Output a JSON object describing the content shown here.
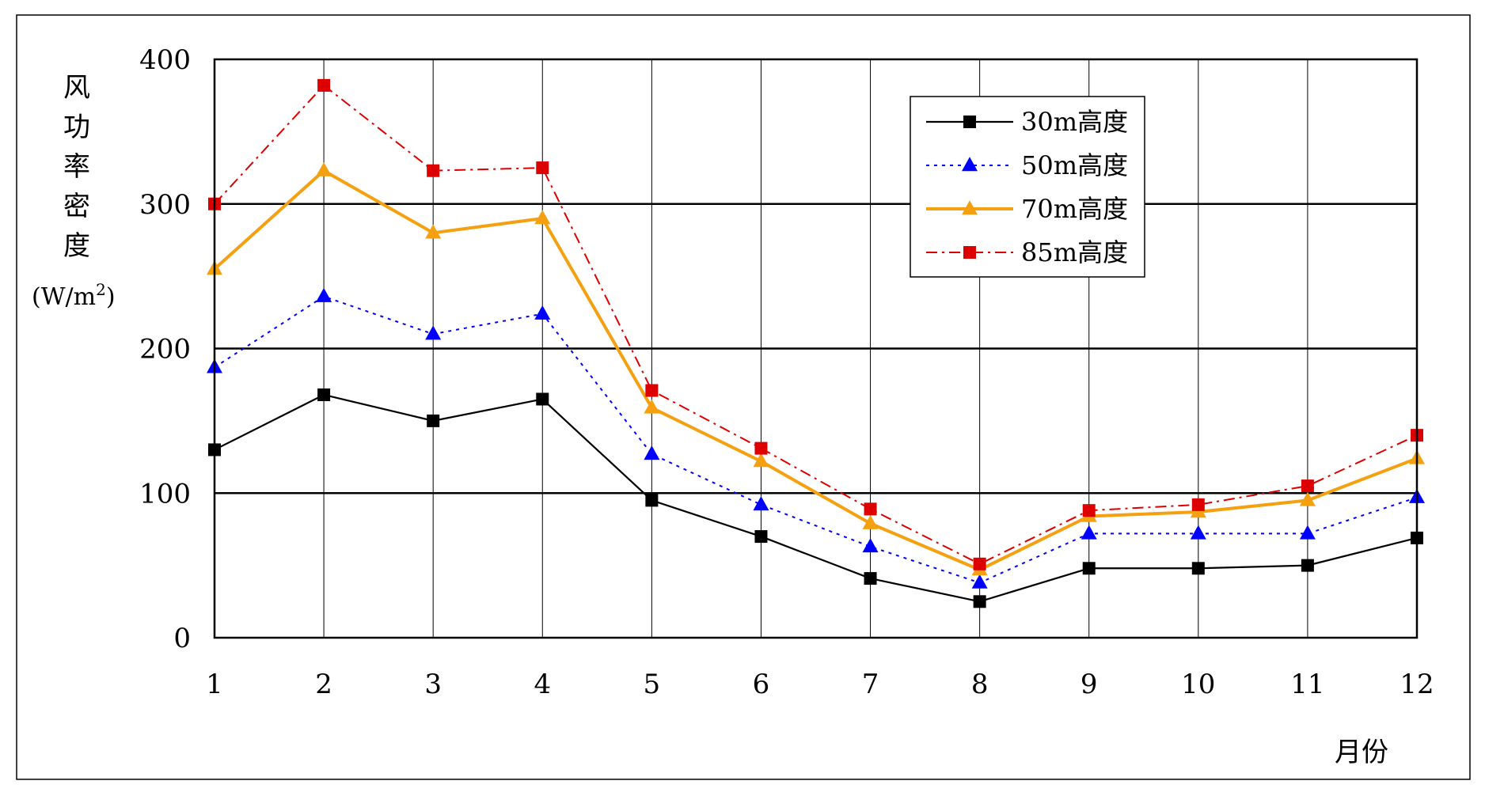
{
  "chart_data": {
    "type": "line",
    "x": [
      1,
      2,
      3,
      4,
      5,
      6,
      7,
      8,
      9,
      10,
      11,
      12
    ],
    "x_tick_labels": [
      "1",
      "2",
      "3",
      "4",
      "5",
      "6",
      "7",
      "8",
      "9",
      "10",
      "11",
      "12"
    ],
    "y_tick_labels": [
      "0",
      "100",
      "200",
      "300",
      "400"
    ],
    "ylim": [
      0,
      400
    ],
    "xlim": [
      1,
      12
    ],
    "grid": true,
    "legend_position": "top-right",
    "ylabel_chars": [
      "风",
      "功",
      "率",
      "密",
      "度"
    ],
    "ylabel_unit": "(W/m",
    "ylabel_unit_sup": "2",
    "ylabel_unit_close": ")",
    "xlabel": "月份",
    "series": [
      {
        "name": "30m高度",
        "color": "#000000",
        "marker": "square",
        "line_style": "solid",
        "values": [
          130,
          168,
          150,
          165,
          95,
          70,
          41,
          25,
          48,
          48,
          50,
          69
        ]
      },
      {
        "name": "50m高度",
        "color": "#0000ff",
        "marker": "triangle",
        "line_style": "dotted",
        "values": [
          187,
          236,
          210,
          224,
          127,
          92,
          63,
          38,
          72,
          72,
          72,
          97
        ]
      },
      {
        "name": "70m高度",
        "color": "#f4a010",
        "marker": "triangle",
        "line_style": "solid-thick",
        "values": [
          255,
          323,
          280,
          290,
          159,
          122,
          79,
          47,
          84,
          87,
          95,
          124
        ]
      },
      {
        "name": "85m高度",
        "color": "#dd0000",
        "marker": "square",
        "line_style": "dash-dot",
        "values": [
          300,
          382,
          323,
          325,
          171,
          131,
          89,
          51,
          88,
          92,
          105,
          140
        ]
      }
    ]
  }
}
